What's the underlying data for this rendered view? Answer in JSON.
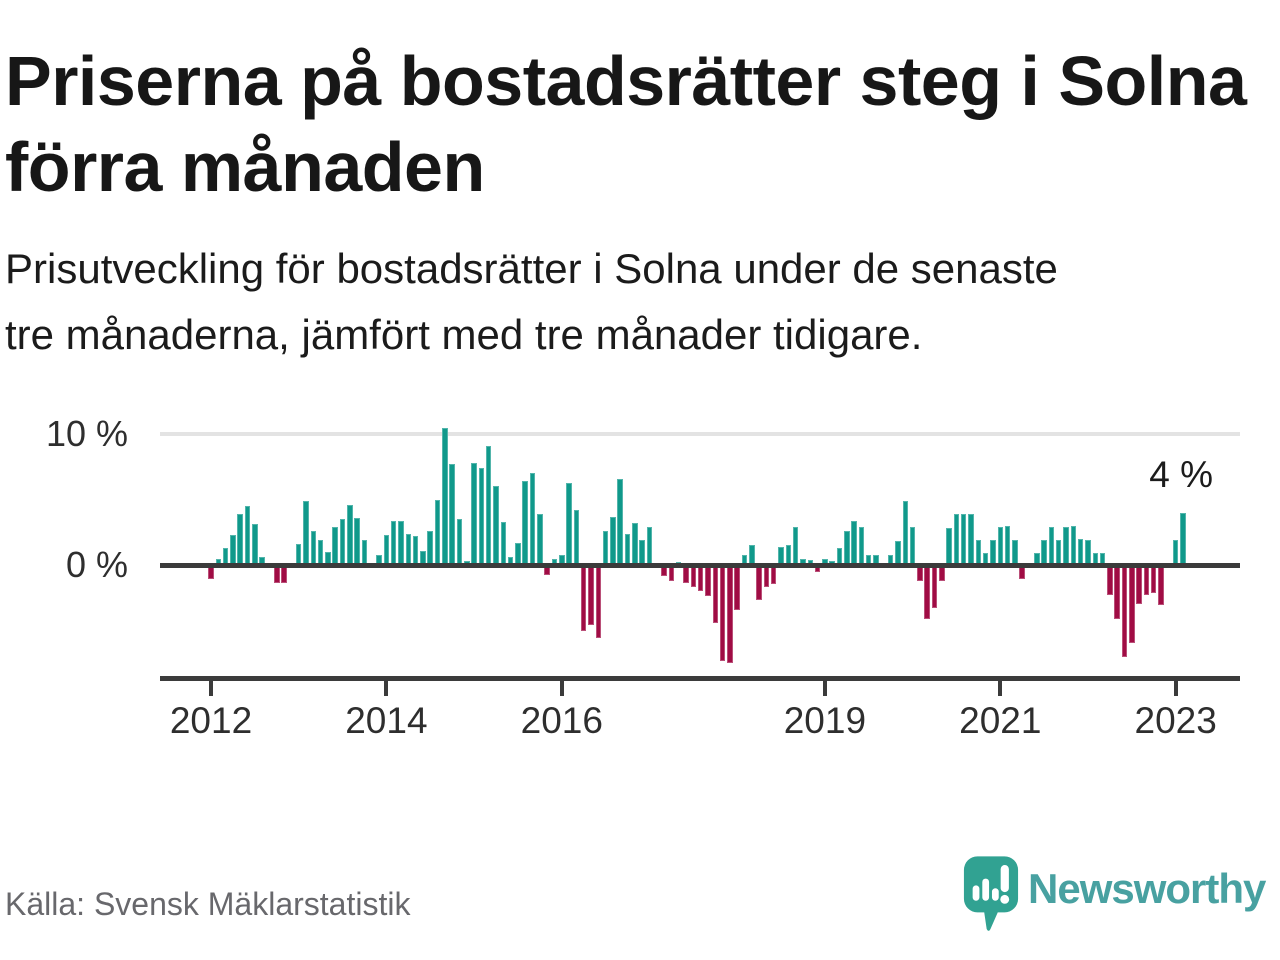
{
  "header": {
    "title_line1": "Priserna på bostadsrätter steg i Solna",
    "title_line2": "förra månaden",
    "subtitle_line1": "Prisutveckling för bostadsrätter i Solna under de senaste",
    "subtitle_line2": "tre månaderna, jämfört med tre månader tidigare."
  },
  "chart_data": {
    "type": "bar",
    "title": "Prisutveckling för bostadsrätter i Solna, tremånaders förändring (%)",
    "unit": "%",
    "ylabel": "",
    "xlabel": "",
    "ylim": [
      -8,
      11
    ],
    "grid": "single horizontal gridline at 10 %",
    "y_tick_labels": {
      "top": "10 %",
      "zero": "0 %"
    },
    "x_tick_labels": [
      "2012",
      "2014",
      "2016",
      "2019",
      "2021",
      "2023"
    ],
    "x_tick_indices": [
      0,
      24,
      48,
      84,
      108,
      132
    ],
    "annotation": {
      "text": "4 %",
      "value": 4,
      "refers_to": "last bar (Feb 2023)"
    },
    "colors": {
      "positive": "#10998b",
      "negative": "#a00c44",
      "axis": "#3b3b3b",
      "gridline": "#e3e3e3"
    },
    "categories": [
      "2012-01",
      "2012-02",
      "2012-03",
      "2012-04",
      "2012-05",
      "2012-06",
      "2012-07",
      "2012-08",
      "2012-09",
      "2012-10",
      "2012-11",
      "2012-12",
      "2013-01",
      "2013-02",
      "2013-03",
      "2013-04",
      "2013-05",
      "2013-06",
      "2013-07",
      "2013-08",
      "2013-09",
      "2013-10",
      "2013-11",
      "2013-12",
      "2014-01",
      "2014-02",
      "2014-03",
      "2014-04",
      "2014-05",
      "2014-06",
      "2014-07",
      "2014-08",
      "2014-09",
      "2014-10",
      "2014-11",
      "2014-12",
      "2015-01",
      "2015-02",
      "2015-03",
      "2015-04",
      "2015-05",
      "2015-06",
      "2015-07",
      "2015-08",
      "2015-09",
      "2015-10",
      "2015-11",
      "2015-12",
      "2016-01",
      "2016-02",
      "2016-03",
      "2016-04",
      "2016-05",
      "2016-06",
      "2016-07",
      "2016-08",
      "2016-09",
      "2016-10",
      "2016-11",
      "2016-12",
      "2017-01",
      "2017-02",
      "2017-03",
      "2017-04",
      "2017-05",
      "2017-06",
      "2017-07",
      "2017-08",
      "2017-09",
      "2017-10",
      "2017-11",
      "2017-12",
      "2018-01",
      "2018-02",
      "2018-03",
      "2018-04",
      "2018-05",
      "2018-06",
      "2018-07",
      "2018-08",
      "2018-09",
      "2018-10",
      "2018-11",
      "2018-12",
      "2019-01",
      "2019-02",
      "2019-03",
      "2019-04",
      "2019-05",
      "2019-06",
      "2019-07",
      "2019-08",
      "2019-09",
      "2019-10",
      "2019-11",
      "2019-12",
      "2020-01",
      "2020-02",
      "2020-03",
      "2020-04",
      "2020-05",
      "2020-06",
      "2020-07",
      "2020-08",
      "2020-09",
      "2020-10",
      "2020-11",
      "2020-12",
      "2021-01",
      "2021-02",
      "2021-03",
      "2021-04",
      "2021-05",
      "2021-06",
      "2021-07",
      "2021-08",
      "2021-09",
      "2021-10",
      "2021-11",
      "2021-12",
      "2022-01",
      "2022-02",
      "2022-03",
      "2022-04",
      "2022-05",
      "2022-06",
      "2022-07",
      "2022-08",
      "2022-09",
      "2022-10",
      "2022-11",
      "2022-12",
      "2023-01",
      "2023-02"
    ],
    "values": [
      -0.9,
      0.5,
      1.3,
      2.3,
      3.9,
      4.5,
      3.1,
      0.6,
      0,
      -1.2,
      -1.2,
      0,
      1.6,
      4.9,
      2.6,
      1.9,
      1.0,
      2.9,
      3.5,
      4.6,
      3.6,
      1.9,
      0,
      0.8,
      2.3,
      3.4,
      3.4,
      2.4,
      2.2,
      1.1,
      2.6,
      5.0,
      10.5,
      7.7,
      3.5,
      0.3,
      7.8,
      7.4,
      9.1,
      6.0,
      3.3,
      0.6,
      1.7,
      6.4,
      7.0,
      3.9,
      -0.6,
      0.5,
      0.8,
      6.3,
      4.2,
      -4.9,
      -4.4,
      -5.4,
      2.6,
      3.7,
      6.6,
      2.4,
      3.2,
      1.9,
      2.9,
      0,
      -0.7,
      -1.1,
      0.2,
      -1.2,
      -1.5,
      -1.8,
      -2.2,
      -4.3,
      -7.2,
      -7.3,
      -3.3,
      0.8,
      1.5,
      -2.5,
      -1.5,
      -1.3,
      1.4,
      1.5,
      2.9,
      0.5,
      0.4,
      -0.4,
      0.5,
      0.3,
      1.3,
      2.6,
      3.4,
      2.9,
      0.8,
      0.8,
      0,
      0.8,
      1.8,
      4.9,
      2.9,
      -1.1,
      -4.0,
      -3.1,
      -1.1,
      2.8,
      3.9,
      3.9,
      3.9,
      1.9,
      0.9,
      1.9,
      2.9,
      3.0,
      1.9,
      -0.9,
      0,
      0.9,
      1.9,
      2.9,
      1.9,
      2.9,
      3.0,
      2.0,
      1.9,
      0.9,
      0.9,
      -2.1,
      -4.0,
      -6.9,
      -5.8,
      -2.8,
      -2.1,
      -2.0,
      -2.9,
      0,
      1.9,
      4.0
    ]
  },
  "footer": {
    "source": "Källa: Svensk Mäklarstatistik",
    "brand": "Newsworthy",
    "brand_color": "#48a1a1",
    "brand_icon_color": "#31a292"
  }
}
